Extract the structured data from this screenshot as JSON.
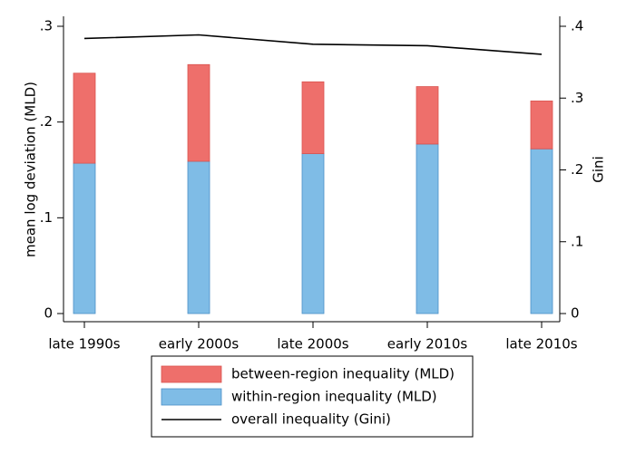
{
  "chart_data": {
    "type": "bar",
    "stacked": true,
    "categories": [
      "late 1990s",
      "early 2000s",
      "late 2000s",
      "early 2010s",
      "late 2010s"
    ],
    "series": [
      {
        "name": "within-region inequality (MLD)",
        "axis": "left",
        "kind": "bar",
        "color": "#7fbce6",
        "values": [
          0.157,
          0.159,
          0.167,
          0.177,
          0.172
        ]
      },
      {
        "name": "between-region inequality (MLD)",
        "axis": "left",
        "kind": "bar",
        "color": "#ee6f6b",
        "values": [
          0.094,
          0.101,
          0.075,
          0.06,
          0.05
        ]
      },
      {
        "name": "overall inequality (Gini)",
        "axis": "right",
        "kind": "line",
        "color": "#000000",
        "values": [
          0.383,
          0.388,
          0.375,
          0.373,
          0.361
        ]
      }
    ],
    "y_left": {
      "label": "mean log deviation (MLD)",
      "range": [
        0,
        0.3
      ],
      "ticks": [
        0,
        0.1,
        0.2,
        0.3
      ],
      "tick_labels": [
        "0",
        ".1",
        ".2",
        ".3"
      ]
    },
    "y_right": {
      "label": "Gini",
      "range": [
        0,
        0.4
      ],
      "ticks": [
        0,
        0.1,
        0.2,
        0.3,
        0.4
      ],
      "tick_labels": [
        "0",
        ".1",
        ".2",
        ".3",
        ".4"
      ]
    },
    "legend": {
      "placement": "bottom",
      "entries": [
        {
          "name": "between-region inequality (MLD)",
          "symbol": "box",
          "color": "#ee6f6b"
        },
        {
          "name": "within-region inequality (MLD)",
          "symbol": "box",
          "color": "#7fbce6"
        },
        {
          "name": "overall inequality (Gini)",
          "symbol": "line",
          "color": "#000000"
        }
      ]
    },
    "grid": false
  }
}
